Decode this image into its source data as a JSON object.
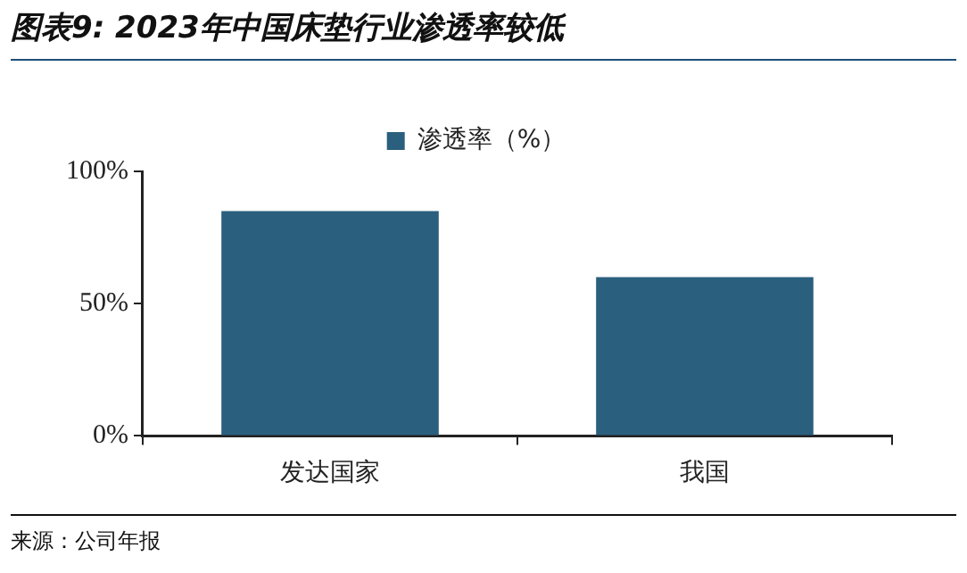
{
  "chart_data": {
    "type": "bar",
    "title": "图表9: 2023年中国床垫行业渗透率较低",
    "categories": [
      "发达国家",
      "我国"
    ],
    "series": [
      {
        "name": "渗透率（%）",
        "color": "#2b5f7e",
        "values": [
          85,
          60
        ]
      }
    ],
    "ylim": [
      0,
      100
    ],
    "yticks": [
      {
        "value": 0,
        "label": "0%"
      },
      {
        "value": 50,
        "label": "50%"
      },
      {
        "value": 100,
        "label": "100%"
      }
    ],
    "grid": false,
    "legend": "top",
    "annotations": [
      "来源：公司年报"
    ]
  }
}
